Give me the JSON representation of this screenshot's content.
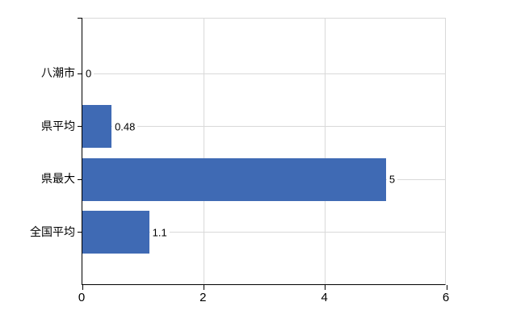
{
  "chart_data": {
    "type": "bar",
    "orientation": "horizontal",
    "title": "",
    "xlabel": "",
    "ylabel": "",
    "categories": [
      "八潮市",
      "県平均",
      "県最大",
      "全国平均"
    ],
    "values": [
      0,
      0.48,
      5,
      1.1
    ],
    "value_labels": [
      "0",
      "0.48",
      "5",
      "1.1"
    ],
    "x_ticks": [
      0,
      2,
      4,
      6
    ],
    "x_tick_labels": [
      "0",
      "2",
      "4",
      "6"
    ],
    "xlim": [
      0,
      6
    ],
    "grid": true,
    "legend": "none",
    "bar_color": "#3f6ab4",
    "grid_color": "#d9d9d9",
    "axis_color": "#000000",
    "text_color": "#000000",
    "background_color": "#ffffff"
  }
}
